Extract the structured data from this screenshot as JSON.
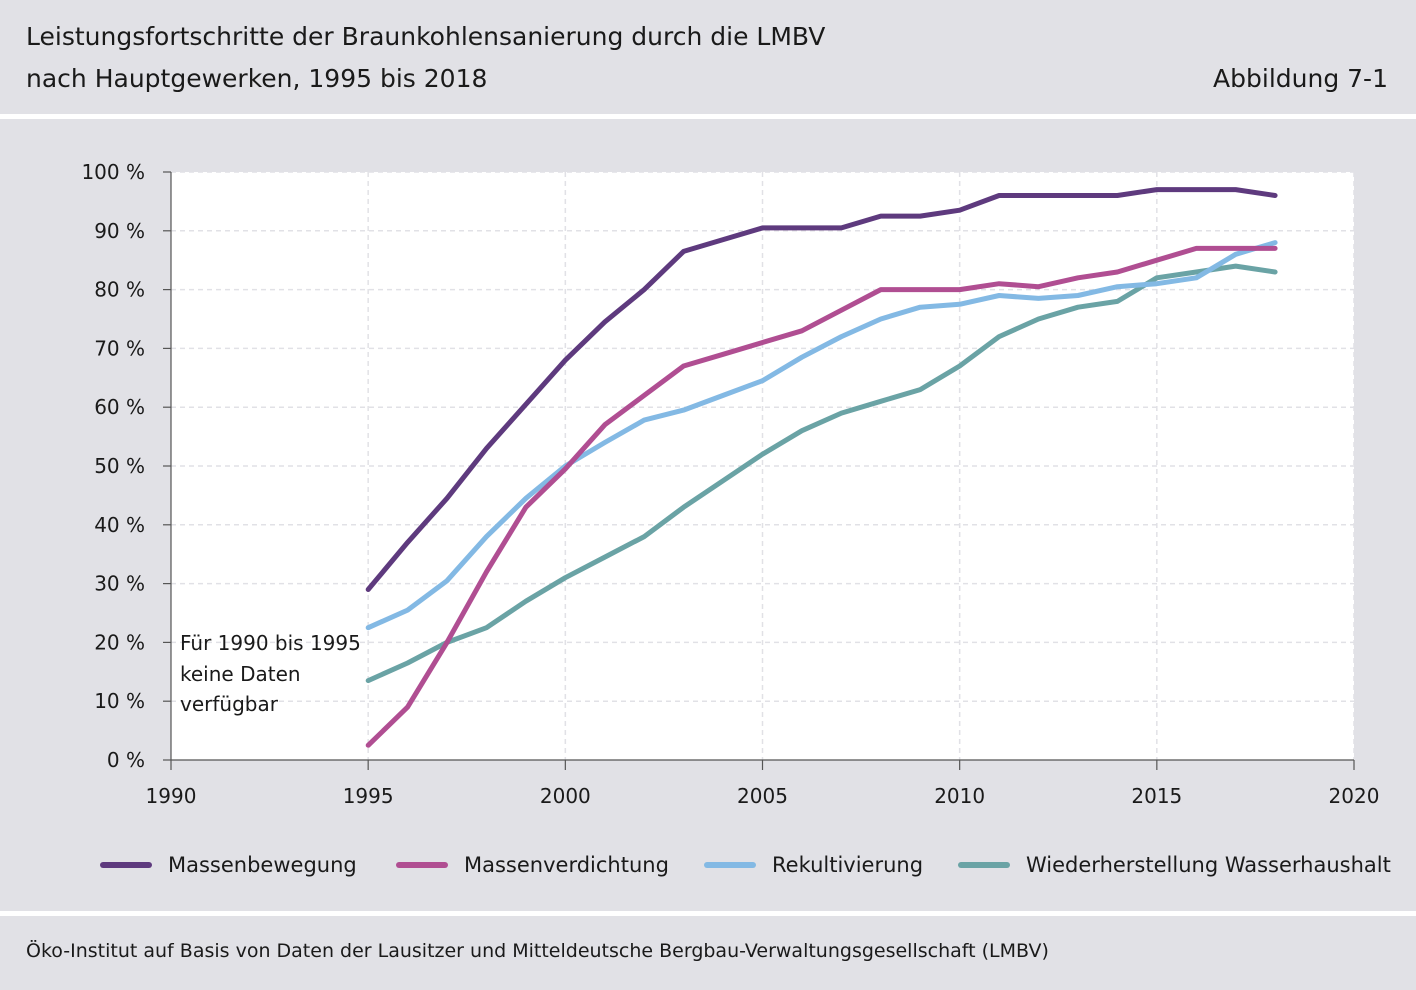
{
  "header": {
    "title_line1": "Leistungsfortschritte der Braunkohlensanierung durch die LMBV",
    "title_line2": "nach Hauptgewerken, 1995 bis 2018",
    "figure_label": "Abbildung 7-1"
  },
  "footer": {
    "source": "Öko-Institut auf Basis von Daten der Lausitzer und Mitteldeutsche Bergbau-Verwaltungsgesellschaft (LMBV)"
  },
  "chart_data": {
    "type": "line",
    "title": "Leistungsfortschritte der Braunkohlensanierung durch die LMBV nach Hauptgewerken, 1995 bis 2018",
    "xlabel": "",
    "ylabel": "",
    "xlim": [
      1990,
      2020
    ],
    "ylim": [
      0,
      100
    ],
    "x_ticks": [
      "1990",
      "1995",
      "2000",
      "2005",
      "2010",
      "2015",
      "2020"
    ],
    "y_ticks": [
      "0 %",
      "10 %",
      "20 %",
      "30 %",
      "40 %",
      "50 %",
      "60 %",
      "70 %",
      "80 %",
      "90 %",
      "100 %"
    ],
    "grid": true,
    "annotation": [
      "Für 1990 bis 1995",
      "keine Daten",
      "verfügbar"
    ],
    "x": [
      1995,
      1996,
      1997,
      1998,
      1999,
      2000,
      2001,
      2002,
      2003,
      2004,
      2005,
      2006,
      2007,
      2008,
      2009,
      2010,
      2011,
      2012,
      2013,
      2014,
      2015,
      2016,
      2017,
      2018
    ],
    "series": [
      {
        "name": "Massenbewegung",
        "color": "#5e3a7e",
        "values": [
          29,
          37,
          44.5,
          53,
          60.5,
          68,
          74.5,
          80,
          86.5,
          88.5,
          90.5,
          90.5,
          90.5,
          92.5,
          92.5,
          93.5,
          96,
          96,
          96,
          96,
          97,
          97,
          97,
          96
        ]
      },
      {
        "name": "Massenverdichtung",
        "color": "#b04e92",
        "values": [
          2.5,
          9,
          20,
          32,
          43,
          49.5,
          57,
          62,
          67,
          69,
          71,
          73,
          76.5,
          80,
          80,
          80,
          81,
          80.5,
          82,
          83,
          85,
          87,
          87,
          87
        ]
      },
      {
        "name": "Rekultivierung",
        "color": "#83b9e4",
        "values": [
          22.5,
          25.5,
          30.5,
          38,
          44.5,
          50,
          54,
          57.8,
          59.5,
          62,
          64.5,
          68.5,
          72,
          75,
          77,
          77.5,
          79,
          78.5,
          79,
          80.5,
          81,
          82,
          86,
          88
        ]
      },
      {
        "name": "Wiederherstellung Wasserhaushalt",
        "color": "#6aa3a5",
        "values": [
          13.5,
          16.5,
          20,
          22.5,
          27,
          31,
          34.5,
          38,
          43,
          47.5,
          52,
          56,
          59,
          61,
          63,
          67,
          72,
          75,
          77,
          78,
          82,
          83,
          84,
          83
        ]
      }
    ]
  }
}
